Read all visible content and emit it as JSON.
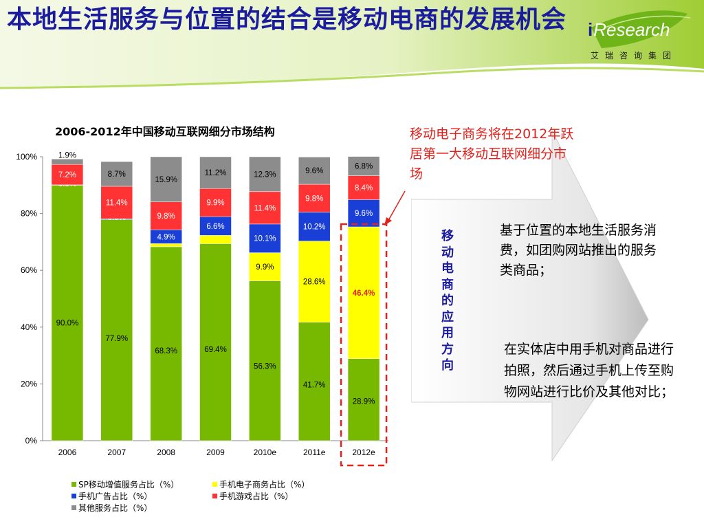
{
  "slide": {
    "title": "本地生活服务与位置的结合是移动电商的发展机会",
    "logo_word": "Research",
    "logo_i": "i",
    "logo_sub": "艾瑞咨询集团"
  },
  "annotations": {
    "red_note": "移动电子商务将在2012年跃居第一大移动互联网细分市场",
    "vertical_label": "移动电商的应用方向",
    "point_1": "基于位置的本地生活服务消费，如团购网站推出的服务类商品；",
    "point_2": "在实体店中用手机对商品进行拍照，然后通过手机上传至购物网站进行比价及其他对比；"
  },
  "colors": {
    "title_blue": "#1b1b9e",
    "green": "#76b900",
    "yellow": "#ffff00",
    "blue": "#1a3fd6",
    "red": "#ff3333",
    "gray": "#8c8c8c",
    "highlight_red": "#e2221c"
  },
  "chart_data": {
    "type": "bar",
    "stacked": true,
    "title": "2006-2012年中国移动互联网细分市场结构",
    "categories": [
      "2006",
      "2007",
      "2008",
      "2009",
      "2010e",
      "2011e",
      "2012e"
    ],
    "yticks": [
      "0%",
      "20%",
      "40%",
      "60%",
      "80%",
      "100%"
    ],
    "ylim": [
      0,
      100
    ],
    "series": [
      {
        "name": "SP移动增值服务占比（%）",
        "color": "#76b900",
        "values": [
          90.0,
          77.9,
          68.3,
          69.4,
          56.3,
          41.7,
          28.9
        ]
      },
      {
        "name": "手机电子商务占比（%）",
        "color": "#ffff00",
        "values": [
          0.0,
          0.0,
          1.1,
          2.9,
          9.9,
          28.6,
          46.4
        ]
      },
      {
        "name": "手机广告占比（%）",
        "color": "#1a3fd6",
        "values": [
          0.1,
          0.3,
          4.9,
          6.6,
          10.1,
          10.2,
          9.6
        ]
      },
      {
        "name": "手机游戏占比（%）",
        "color": "#ff3333",
        "values": [
          7.2,
          11.4,
          9.8,
          9.9,
          11.4,
          9.8,
          8.4
        ]
      },
      {
        "name": "其他服务占比（%）",
        "color": "#8c8c8c",
        "values": [
          1.9,
          8.7,
          15.9,
          11.2,
          12.3,
          9.6,
          6.8
        ]
      }
    ],
    "highlight_category": "2012e",
    "highlight_value_label": "46.4%",
    "legend_position": "bottom"
  }
}
